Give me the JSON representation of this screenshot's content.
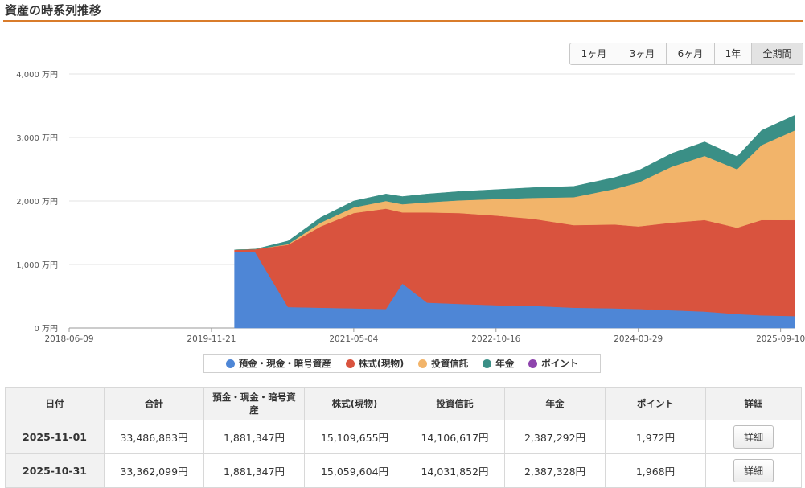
{
  "header": {
    "title": "資産の時系列推移"
  },
  "range_buttons": [
    {
      "label": "1ヶ月",
      "active": false
    },
    {
      "label": "3ヶ月",
      "active": false
    },
    {
      "label": "6ヶ月",
      "active": false
    },
    {
      "label": "1年",
      "active": false
    },
    {
      "label": "全期間",
      "active": true
    }
  ],
  "chart_data": {
    "type": "area",
    "stacked": true,
    "y_unit": "万円",
    "ylim": [
      0,
      4000
    ],
    "y_ticks": [
      "0 万円",
      "1,000 万円",
      "2,000 万円",
      "3,000 万円",
      "4,000 万円"
    ],
    "x_ticks": [
      "2018-06-09",
      "2019-11-21",
      "2021-05-04",
      "2022-10-16",
      "2024-03-29",
      "2025-09-10"
    ],
    "x": [
      "2020-02-15",
      "2020-05-01",
      "2020-09-01",
      "2021-01-01",
      "2021-05-04",
      "2021-09-01",
      "2021-11-01",
      "2022-02-01",
      "2022-06-01",
      "2022-10-16",
      "2023-03-01",
      "2023-08-01",
      "2024-01-01",
      "2024-03-29",
      "2024-08-01",
      "2024-12-01",
      "2025-04-01",
      "2025-07-01",
      "2025-11-01"
    ],
    "series": [
      {
        "name": "預金・現金・暗号資産",
        "color": "#4e86d6",
        "values": [
          1200,
          1200,
          330,
          320,
          310,
          300,
          700,
          400,
          380,
          360,
          350,
          320,
          310,
          300,
          280,
          260,
          220,
          200,
          188
        ]
      },
      {
        "name": "株式(現物)",
        "color": "#d9533e",
        "values": [
          30,
          40,
          980,
          1280,
          1500,
          1580,
          1120,
          1420,
          1430,
          1410,
          1370,
          1300,
          1320,
          1300,
          1380,
          1440,
          1360,
          1500,
          1511
        ]
      },
      {
        "name": "投資信託",
        "color": "#f2b46a",
        "values": [
          0,
          0,
          10,
          60,
          90,
          120,
          130,
          160,
          200,
          260,
          330,
          440,
          560,
          690,
          880,
          1010,
          920,
          1180,
          1411
        ]
      },
      {
        "name": "年金",
        "color": "#3a8f86",
        "values": [
          0,
          0,
          50,
          80,
          100,
          110,
          120,
          130,
          140,
          150,
          160,
          170,
          180,
          190,
          210,
          220,
          200,
          230,
          239
        ]
      },
      {
        "name": "ポイント",
        "color": "#8e44ad",
        "values": [
          0,
          0,
          0,
          0,
          0,
          0,
          0,
          0,
          0,
          0,
          0,
          0,
          0,
          0,
          0,
          0,
          0,
          0,
          0
        ]
      }
    ],
    "legend_position": "bottom"
  },
  "table": {
    "headers": [
      "日付",
      "合計",
      "預金・現金・暗号資産",
      "株式(現物)",
      "投資信託",
      "年金",
      "ポイント",
      "詳細"
    ],
    "rows": [
      {
        "date": "2025-11-01",
        "total": "33,486,883円",
        "cash": "1,881,347円",
        "stock": "15,109,655円",
        "fund": "14,106,617円",
        "pension": "2,387,292円",
        "point": "1,972円",
        "detail": "詳細"
      },
      {
        "date": "2025-10-31",
        "total": "33,362,099円",
        "cash": "1,881,347円",
        "stock": "15,059,604円",
        "fund": "14,031,852円",
        "pension": "2,387,328円",
        "point": "1,968円",
        "detail": "詳細"
      }
    ]
  }
}
